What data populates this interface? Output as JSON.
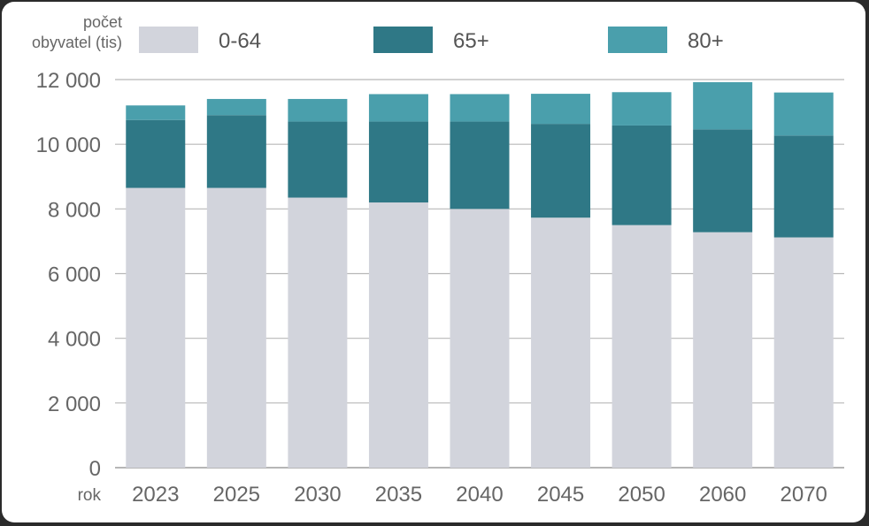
{
  "chart_data": {
    "type": "bar",
    "stacked": true,
    "ylabel_line1": "počet",
    "ylabel_line2": "obyvatel (tis)",
    "xlabel": "rok",
    "categories": [
      "2023",
      "2025",
      "2030",
      "2035",
      "2040",
      "2045",
      "2050",
      "2060",
      "2070"
    ],
    "series": [
      {
        "name": "0-64",
        "color": "#d2d4dc",
        "values": [
          8650,
          8650,
          8350,
          8200,
          8000,
          7730,
          7500,
          7280,
          7120
        ]
      },
      {
        "name": "65+",
        "color": "#2f7886",
        "values": [
          2100,
          2250,
          2350,
          2500,
          2700,
          2900,
          3080,
          3180,
          3150
        ]
      },
      {
        "name": "80+",
        "color": "#4a9fac",
        "values": [
          450,
          500,
          700,
          850,
          850,
          930,
          1030,
          1460,
          1330
        ]
      }
    ],
    "ylim": [
      0,
      12000
    ],
    "yticks": [
      0,
      2000,
      4000,
      6000,
      8000,
      10000,
      12000
    ],
    "ytick_labels": [
      "0",
      "2  000",
      "4 000",
      "6 000",
      "8 000",
      "10 000",
      "12 000"
    ],
    "grid": true,
    "legend_position": "top"
  }
}
